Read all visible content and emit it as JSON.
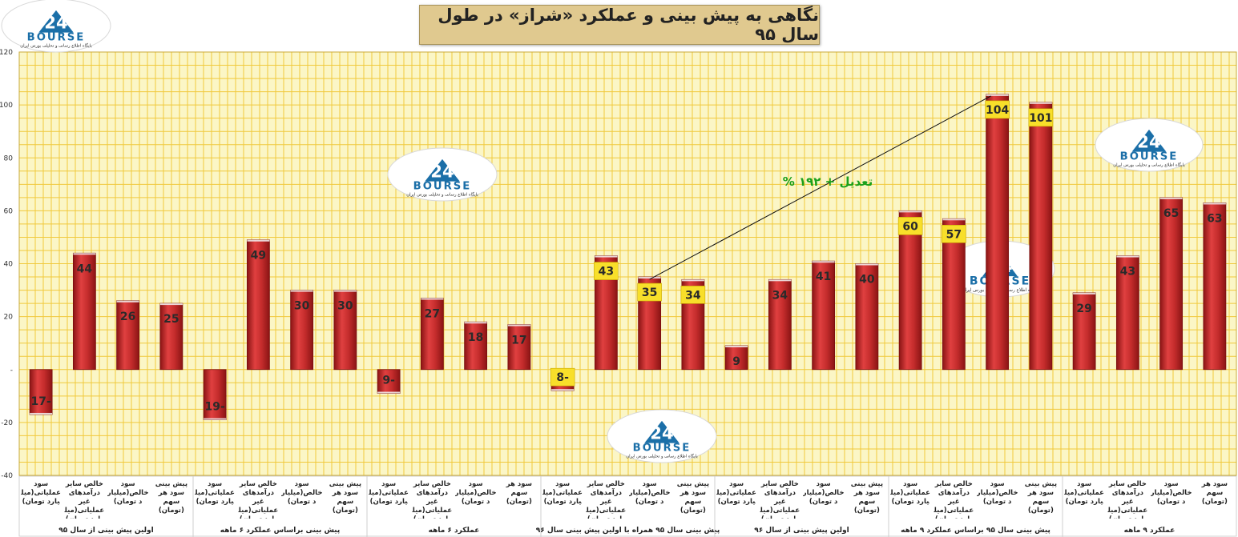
{
  "chart_data": {
    "type": "bar",
    "title": "نگاهی به پیش بینی و عملکرد «شراز» در طول سال ۹۵",
    "ylim": [
      -40,
      120
    ],
    "yticks": [
      "-40",
      "-20",
      "-",
      "20",
      "40",
      "60",
      "80",
      "100",
      "120"
    ],
    "grid": true,
    "groups": [
      {
        "label": "اولین پیش بینی از سال ۹۵",
        "highlight": false,
        "bars": [
          {
            "category": "سود عملیاتی(میلیارد تومان)",
            "value": -17,
            "label": "17-"
          },
          {
            "category": "خالص سایر درآمدهای غیر عملیاتی(میلیارد تومان)",
            "value": 44,
            "label": "44"
          },
          {
            "category": "سود خالص(میلیارد تومان)",
            "value": 26,
            "label": "26"
          },
          {
            "category": "پیش بینی سود هر سهم (تومان)",
            "value": 25,
            "label": "25"
          }
        ]
      },
      {
        "label": "پیش بینی براساس عملکرد ۶ ماهه",
        "highlight": false,
        "bars": [
          {
            "category": "سود عملیاتی(میلیارد تومان)",
            "value": -19,
            "label": "19-"
          },
          {
            "category": "خالص سایر درآمدهای غیر عملیاتی(میلیارد تومان)",
            "value": 49,
            "label": "49"
          },
          {
            "category": "سود خالص(میلیارد تومان)",
            "value": 30,
            "label": "30"
          },
          {
            "category": "پیش بینی سود هر سهم (تومان)",
            "value": 30,
            "label": "30"
          }
        ]
      },
      {
        "label": "عملکرد ۶ ماهه",
        "highlight": false,
        "bars": [
          {
            "category": "سود عملیاتی(میلیارد تومان)",
            "value": -9,
            "label": "9-"
          },
          {
            "category": "خالص سایر درآمدهای غیر عملیاتی(میلیارد تومان)",
            "value": 27,
            "label": "27"
          },
          {
            "category": "سود خالص(میلیارد تومان)",
            "value": 18,
            "label": "18"
          },
          {
            "category": "سود هر سهم (تومان)",
            "value": 17,
            "label": "17"
          }
        ]
      },
      {
        "label": "پیش بینی سال ۹۵ همراه با اولین پیش بینی سال ۹۶",
        "highlight": true,
        "bars": [
          {
            "category": "سود عملیاتی(میلیارد تومان)",
            "value": -8,
            "label": "8-"
          },
          {
            "category": "خالص سایر درآمدهای غیر عملیاتی(میلیارد تومان)",
            "value": 43,
            "label": "43"
          },
          {
            "category": "سود خالص(میلیارد تومان)",
            "value": 35,
            "label": "35"
          },
          {
            "category": "پیش بینی سود هر سهم (تومان)",
            "value": 34,
            "label": "34"
          }
        ]
      },
      {
        "label": "اولین پیش بینی از سال ۹۶",
        "highlight": false,
        "bars": [
          {
            "category": "سود عملیاتی(میلیارد تومان)",
            "value": 9,
            "label": "9"
          },
          {
            "category": "خالص سایر درآمدهای غیر عملیاتی(میلیارد تومان)",
            "value": 34,
            "label": "34"
          },
          {
            "category": "سود خالص(میلیارد تومان)",
            "value": 41,
            "label": "41"
          },
          {
            "category": "پیش بینی سود هر سهم (تومان)",
            "value": 40,
            "label": "40"
          }
        ]
      },
      {
        "label": "پیش بینی سال ۹۵ براساس عملکرد ۹ ماهه",
        "highlight": true,
        "bars": [
          {
            "category": "سود عملیاتی(میلیارد تومان)",
            "value": 60,
            "label": "60"
          },
          {
            "category": "خالص سایر درآمدهای غیر عملیاتی(میلیارد تومان)",
            "value": 57,
            "label": "57"
          },
          {
            "category": "سود خالص(میلیارد تومان)",
            "value": 104,
            "label": "104"
          },
          {
            "category": "پیش بینی سود هر سهم (تومان)",
            "value": 101,
            "label": "101"
          }
        ]
      },
      {
        "label": "عملکرد ۹ ماهه",
        "highlight": false,
        "bars": [
          {
            "category": "سود عملیاتی(میلیارد تومان)",
            "value": 29,
            "label": "29"
          },
          {
            "category": "خالص سایر درآمدهای غیر عملیاتی(میلیارد تومان)",
            "value": 43,
            "label": "43"
          },
          {
            "category": "سود خالص(میلیارد تومان)",
            "value": 65,
            "label": "65"
          },
          {
            "category": "سود هر سهم (تومان)",
            "value": 63,
            "label": "63"
          }
        ]
      }
    ],
    "annotation": {
      "text": "تعدیل + ۱۹۲ %",
      "from_value": 35,
      "to_value": 104
    }
  },
  "watermark": {
    "name": "bourse-logo",
    "word": "BOURSE",
    "tagline": "پایگاه اطلاع رسانی و تحلیلی بورس ایران",
    "colors": {
      "blue": "#1b6fa8",
      "red": "#d62020"
    }
  },
  "colors": {
    "bar_top": "#e04040",
    "bar_mid": "#c42c2c",
    "bar_bottom": "#8a1414",
    "plot_bg": "#fbf6c6",
    "grid": "#f0c93c",
    "highlight_label_bg": "#f8df2a",
    "annotation": "#1ba01b",
    "title_bg": "#e0c98f"
  }
}
